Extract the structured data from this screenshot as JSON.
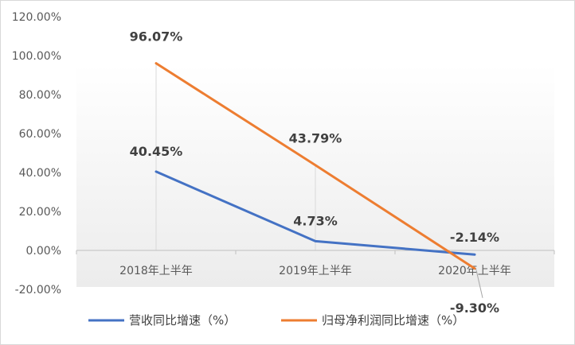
{
  "chart_data": {
    "type": "line",
    "categories": [
      "2018年上半年",
      "2019年上半年",
      "2020年上半年"
    ],
    "series": [
      {
        "name": "营收同比增速（%）",
        "values": [
          40.45,
          4.73,
          -2.14
        ],
        "labels": [
          "40.45%",
          "4.73%",
          "-2.14%"
        ],
        "color": "#4472C4"
      },
      {
        "name": "归母净利润同比增速（%）",
        "values": [
          96.07,
          43.79,
          -9.3
        ],
        "labels": [
          "96.07%",
          "43.79%",
          "-9.30%"
        ],
        "color": "#ED7D31"
      }
    ],
    "ylim": [
      -20,
      120
    ],
    "yticks": [
      -20,
      0,
      20,
      40,
      60,
      80,
      100,
      120
    ],
    "ytick_labels": [
      "-20.00%",
      "0.00%",
      "20.00%",
      "40.00%",
      "60.00%",
      "80.00%",
      "100.00%",
      "120.00%"
    ],
    "legend_position": "bottom",
    "grid": false
  }
}
